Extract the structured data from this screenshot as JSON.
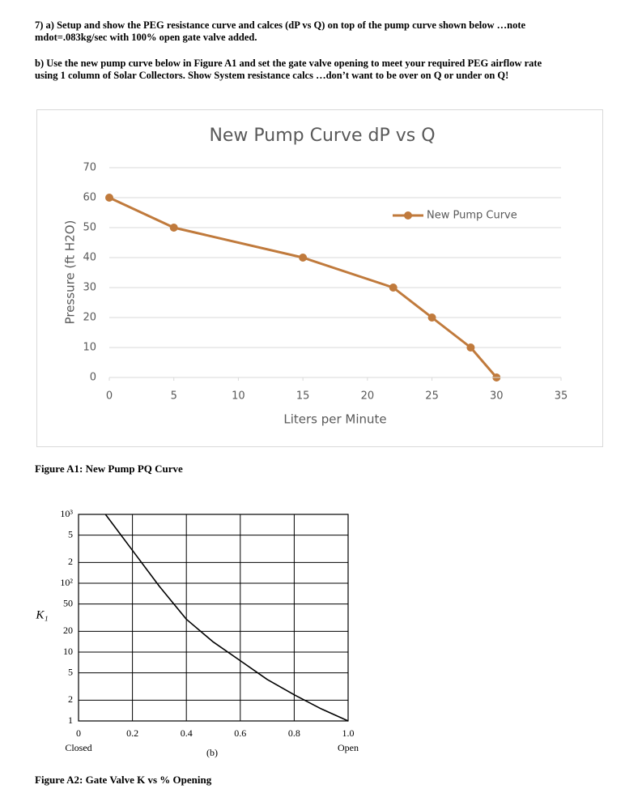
{
  "questions": [
    [
      "7) a) Setup and show the PEG resistance curve and calces  (dP vs Q) on top of the pump curve shown below …note",
      "mdot=.083kg/sec with 100% open gate valve added."
    ],
    [
      "b) Use the new pump curve below in Figure A1 and set the gate valve opening to meet your required PEG airflow rate",
      "using 1 column of Solar Collectors. Show System resistance calcs …don’t want to be over on Q or under on Q!"
    ]
  ],
  "figure_captions": [
    "Figure A1: New Pump PQ Curve",
    "Figure A2: Gate Valve K vs % Opening"
  ],
  "chart_data": [
    {
      "type": "line",
      "title": "New Pump Curve dP vs Q",
      "x_label": "Liters per Minute",
      "y_label": "Pressure (ft H2O)",
      "x": [
        0,
        5,
        15,
        22,
        25,
        28,
        30
      ],
      "series": [
        {
          "name": "New Pump Curve",
          "color": "#c07a3c",
          "values": [
            60,
            50,
            40,
            30,
            20,
            10,
            0
          ]
        }
      ],
      "xlim": [
        0,
        35
      ],
      "xticks": [
        0,
        5,
        10,
        15,
        20,
        25,
        30,
        35
      ],
      "ylim": [
        0,
        70
      ],
      "yticks": [
        0,
        10,
        20,
        30,
        40,
        50,
        60,
        70
      ],
      "grid": true,
      "legend": "upper right"
    },
    {
      "type": "line",
      "x_label": "(b)",
      "y_label": "K₁",
      "x_end_labels": [
        "Closed",
        "Open"
      ],
      "x": [
        0.1,
        0.2,
        0.3,
        0.4,
        0.5,
        0.6,
        0.7,
        0.8,
        0.9,
        1.0
      ],
      "values": [
        1000,
        300,
        90,
        30,
        14,
        7.5,
        4,
        2.4,
        1.5,
        1
      ],
      "color": "#000000",
      "xlim": [
        0,
        1
      ],
      "xticks": [
        0,
        0.2,
        0.4,
        0.6,
        0.8,
        {
          "value": 1,
          "label": "1.0"
        }
      ],
      "ylim": [
        1,
        1000
      ],
      "ylog": true,
      "yticks": [
        1,
        2,
        5,
        10,
        20,
        50,
        {
          "value": 100,
          "label": "10²"
        },
        {
          "value": 200,
          "label": "2"
        },
        {
          "value": 500,
          "label": "5"
        },
        {
          "value": 1000,
          "label": "10³"
        }
      ],
      "grid": true
    }
  ]
}
